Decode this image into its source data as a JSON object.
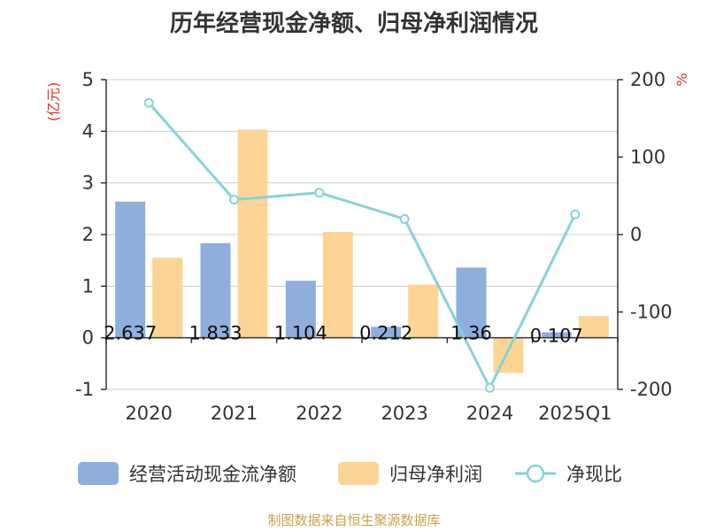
{
  "title": "历年经营现金净额、归母净利润情况",
  "source": "制图数据来自恒生聚源数据库",
  "chart_data": {
    "type": "bar",
    "title": "历年经营现金净额、归母净利润情况",
    "categories": [
      "2020",
      "2021",
      "2022",
      "2023",
      "2024",
      "2025Q1"
    ],
    "y_left": {
      "unit": "(亿元)",
      "range": [
        -1,
        5
      ],
      "ticks": [
        "5",
        "4",
        "3",
        "2",
        "1",
        "0",
        "-1"
      ]
    },
    "y_right": {
      "unit": "%",
      "range": [
        -200,
        200
      ],
      "ticks": [
        "200",
        "100",
        "0",
        "-100",
        "-200"
      ]
    },
    "grid": true,
    "legend_position": "bottom",
    "series": [
      {
        "name": "经营活动现金流净额",
        "type": "bar",
        "axis": "left",
        "color": "#8eaedc",
        "values": [
          2.637,
          1.833,
          1.104,
          0.212,
          1.36,
          0.107
        ],
        "labels": [
          "2.637",
          "1.833",
          "1.104",
          "0.212",
          "1.36",
          "0.107"
        ]
      },
      {
        "name": "归母净利润",
        "type": "bar",
        "axis": "left",
        "color": "#fcd594",
        "values": [
          1.55,
          4.03,
          2.05,
          1.03,
          -0.68,
          0.42
        ]
      },
      {
        "name": "净现比",
        "type": "line",
        "axis": "right",
        "color": "#86d3d7",
        "values": [
          170,
          45,
          54,
          20,
          -198,
          26
        ]
      }
    ]
  }
}
